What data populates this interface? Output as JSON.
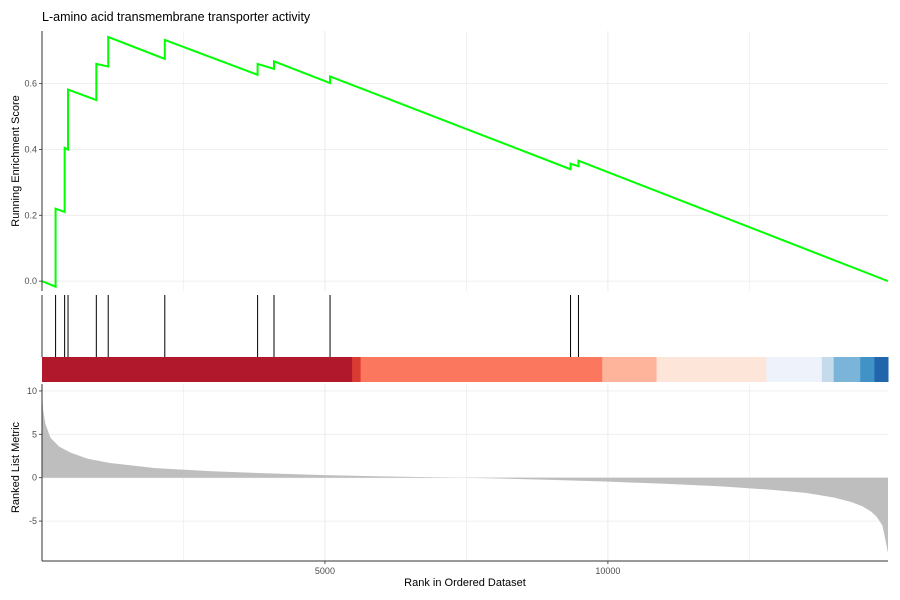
{
  "chart_data": {
    "type": "line",
    "title": "L-amino acid transmembrane transporter activity",
    "xlabel": "Rank in Ordered Dataset",
    "x_ticks": [
      5000,
      10000
    ],
    "x_tick_labels": [
      "5000",
      "10000"
    ],
    "xlim": [
      0,
      14950
    ],
    "grid": true,
    "legend": "none",
    "colors": {
      "running_es_line": "#00ff00",
      "gene_hit": "#000000",
      "metric_area": "#bebebe",
      "grid": "#ebebeb",
      "axis": "#333333"
    },
    "panels": {
      "running_score": {
        "ylabel": "Running Enrichment Score",
        "y_ticks": [
          0.0,
          0.2,
          0.4,
          0.6
        ],
        "y_tick_labels": [
          "0.0",
          "0.2",
          "0.4",
          "0.6"
        ],
        "ylim": [
          -0.03,
          0.76
        ],
        "series": [
          {
            "x": [
              0,
              240,
              240,
              400,
              400,
              460,
              460,
              960,
              960,
              1170,
              1170,
              2170,
              2170,
              3810,
              3810,
              4100,
              4100,
              5090,
              5090,
              9340,
              9340,
              9480,
              9480,
              14950
            ],
            "y": [
              0.0,
              -0.017,
              0.22,
              0.21,
              0.405,
              0.4,
              0.582,
              0.55,
              0.66,
              0.652,
              0.742,
              0.675,
              0.733,
              0.627,
              0.66,
              0.645,
              0.668,
              0.602,
              0.622,
              0.34,
              0.357,
              0.349,
              0.366,
              0.0
            ]
          }
        ]
      },
      "gene_hits": {
        "positions": [
          240,
          400,
          460,
          960,
          1170,
          2170,
          3810,
          4100,
          5090,
          9340,
          9480
        ]
      },
      "rank_colorbar": {
        "segments": [
          {
            "start": 0,
            "end": 5480,
            "color": "#b2182b"
          },
          {
            "start": 5480,
            "end": 5630,
            "color": "#d93a32"
          },
          {
            "start": 5630,
            "end": 9900,
            "color": "#fb785e"
          },
          {
            "start": 9900,
            "end": 10860,
            "color": "#fdb49b"
          },
          {
            "start": 10860,
            "end": 12800,
            "color": "#fde5da"
          },
          {
            "start": 12800,
            "end": 13780,
            "color": "#eef3fb"
          },
          {
            "start": 13780,
            "end": 13990,
            "color": "#c5dbec"
          },
          {
            "start": 13990,
            "end": 14460,
            "color": "#7ab4d9"
          },
          {
            "start": 14460,
            "end": 14710,
            "color": "#4192c6"
          },
          {
            "start": 14710,
            "end": 14950,
            "color": "#2166ac"
          }
        ]
      },
      "ranked_metric": {
        "ylabel": "Ranked List Metric",
        "y_ticks": [
          -5,
          0,
          5,
          10
        ],
        "y_tick_labels": [
          "-5",
          "0",
          "5",
          "10"
        ],
        "ylim": [
          -9.6,
          10.8
        ],
        "series": [
          {
            "x": [
              0,
              20,
              60,
              150,
              300,
              500,
              800,
              1200,
              2000,
              3000,
              4000,
              5000,
              6000,
              7000,
              7400,
              8000,
              9000,
              10000,
              11000,
              12000,
              12800,
              13500,
              14000,
              14300,
              14500,
              14650,
              14750,
              14850,
              14900,
              14950
            ],
            "y": [
              10.0,
              7.8,
              6.2,
              4.6,
              3.6,
              2.9,
              2.2,
              1.7,
              1.1,
              0.75,
              0.5,
              0.3,
              0.15,
              0.04,
              0.0,
              -0.08,
              -0.25,
              -0.45,
              -0.7,
              -1.0,
              -1.35,
              -1.75,
              -2.3,
              -2.8,
              -3.3,
              -3.9,
              -4.5,
              -5.5,
              -7.0,
              -8.7
            ]
          }
        ]
      }
    }
  }
}
